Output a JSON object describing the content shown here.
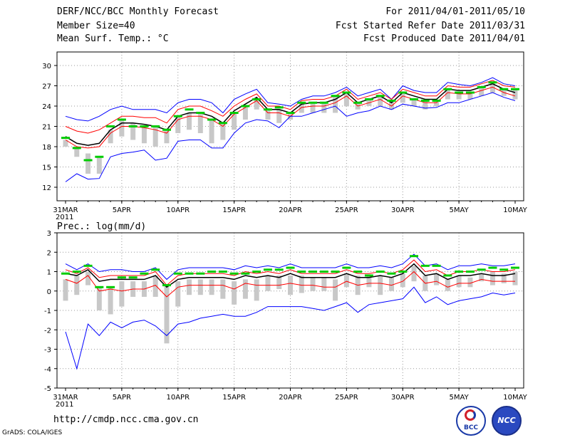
{
  "header": {
    "title": "DERF/NCC/BCC Monthly Forecast",
    "member_size": "Member Size=40",
    "variable": "Mean Surf. Temp.: °C",
    "period": "For 2011/04/01-2011/05/10",
    "start_date": "Fcst Started Refer Date 2011/03/31",
    "produced_date": "Fcst Produced Date 2011/04/01"
  },
  "footer": {
    "url": "http://cmdp.ncc.cma.gov.cn",
    "credit": "GrADS: COLA/IGES"
  },
  "logos": {
    "bcc": "BCC",
    "ncc": "NCC"
  },
  "colors": {
    "envelope": "#0000ff",
    "spread": "#ff0000",
    "mean": "#000000",
    "observed": "#00cc00",
    "bars": "#c8c8c8",
    "grid": "#999999"
  },
  "chart_data": [
    {
      "type": "line",
      "title": "Mean Surf. Temp.: °C",
      "ylim": [
        10,
        32
      ],
      "yticks": [
        12,
        15,
        18,
        21,
        24,
        27,
        30
      ],
      "xlim": [
        1,
        41
      ],
      "xtick_positions": [
        1,
        6,
        11,
        16,
        21,
        26,
        31,
        36,
        41
      ],
      "xtick_labels": [
        "31MAR",
        "5APR",
        "10APR",
        "15APR",
        "20APR",
        "25APR",
        "30APR",
        "5MAY",
        "10MAY"
      ],
      "xtick_year": "2011",
      "x": [
        1,
        2,
        3,
        4,
        5,
        6,
        7,
        8,
        9,
        10,
        11,
        12,
        13,
        14,
        15,
        16,
        17,
        18,
        19,
        20,
        21,
        22,
        23,
        24,
        25,
        26,
        27,
        28,
        29,
        30,
        31,
        32,
        33,
        34,
        35,
        36,
        37,
        38,
        39,
        40,
        41
      ],
      "series": [
        {
          "name": "max",
          "values": [
            22.5,
            22.0,
            21.8,
            22.5,
            23.5,
            24.0,
            23.5,
            23.5,
            23.5,
            23.0,
            24.5,
            25.0,
            25.0,
            24.5,
            23.0,
            25.0,
            25.8,
            26.5,
            24.5,
            24.3,
            24.0,
            25.0,
            25.5,
            25.5,
            26.0,
            26.8,
            25.5,
            26.0,
            26.5,
            25.0,
            27.0,
            26.3,
            26.0,
            26.0,
            27.5,
            27.2,
            27.0,
            27.5,
            28.2,
            27.3,
            27.0
          ]
        },
        {
          "name": "upper",
          "values": [
            21.0,
            20.3,
            20.0,
            20.5,
            21.5,
            22.5,
            22.5,
            22.3,
            22.3,
            21.5,
            23.5,
            24.0,
            24.0,
            23.3,
            22.5,
            24.0,
            25.0,
            25.8,
            24.0,
            24.0,
            23.5,
            24.8,
            25.0,
            25.0,
            25.5,
            26.5,
            25.0,
            25.5,
            26.0,
            25.0,
            26.5,
            26.0,
            25.5,
            25.5,
            27.0,
            26.8,
            26.8,
            27.3,
            27.8,
            27.0,
            26.8
          ]
        },
        {
          "name": "mean",
          "values": [
            19.5,
            18.5,
            18.2,
            18.5,
            20.5,
            21.5,
            21.5,
            21.3,
            21.0,
            20.5,
            22.5,
            23.0,
            23.0,
            22.5,
            21.5,
            23.3,
            24.3,
            25.3,
            23.5,
            23.5,
            23.0,
            24.3,
            24.5,
            24.5,
            25.0,
            26.0,
            24.5,
            25.0,
            25.5,
            24.5,
            26.0,
            25.5,
            25.0,
            25.0,
            26.5,
            26.3,
            26.3,
            26.8,
            27.3,
            26.5,
            26.0
          ]
        },
        {
          "name": "lower",
          "values": [
            19.0,
            18.0,
            17.8,
            18.0,
            20.0,
            21.0,
            21.0,
            20.8,
            20.5,
            20.0,
            22.0,
            22.5,
            22.5,
            22.0,
            21.0,
            22.8,
            23.8,
            24.8,
            23.0,
            23.0,
            22.5,
            23.8,
            24.0,
            24.0,
            24.5,
            25.5,
            24.0,
            24.5,
            25.0,
            24.0,
            25.5,
            25.0,
            24.5,
            24.5,
            26.0,
            25.8,
            25.8,
            26.3,
            26.8,
            26.0,
            25.5
          ]
        },
        {
          "name": "min",
          "values": [
            12.8,
            14.0,
            13.2,
            13.3,
            16.5,
            17.0,
            17.2,
            17.5,
            16.0,
            16.3,
            18.8,
            19.0,
            19.0,
            17.8,
            17.8,
            20.0,
            21.5,
            22.0,
            21.8,
            20.8,
            22.5,
            22.5,
            23.0,
            23.5,
            24.0,
            22.5,
            23.0,
            23.3,
            24.0,
            23.5,
            24.3,
            24.0,
            23.7,
            23.8,
            24.5,
            24.5,
            25.0,
            25.5,
            26.0,
            25.3,
            24.8
          ]
        },
        {
          "name": "observed",
          "values": [
            19.3,
            17.8,
            16.0,
            16.5,
            21.0,
            22.0,
            21.0,
            21.0,
            21.0,
            20.5,
            22.5,
            23.5,
            23.0,
            22.0,
            21.5,
            23.0,
            24.0,
            25.0,
            23.5,
            23.8,
            23.0,
            24.5,
            24.5,
            24.5,
            25.5,
            26.0,
            24.5,
            25.0,
            25.5,
            24.8,
            26.0,
            25.0,
            24.8,
            24.8,
            26.5,
            26.0,
            26.0,
            26.8,
            27.5,
            26.5,
            26.5
          ]
        }
      ],
      "bars": [
        [
          18.0,
          19.0
        ],
        [
          16.5,
          18.0
        ],
        [
          14.0,
          17.0
        ],
        [
          14.0,
          16.5
        ],
        [
          18.5,
          20.5
        ],
        [
          19.5,
          22.0
        ],
        [
          19.0,
          21.5
        ],
        [
          18.5,
          21.0
        ],
        [
          18.0,
          21.0
        ],
        [
          18.5,
          20.5
        ],
        [
          20.0,
          22.5
        ],
        [
          20.5,
          23.0
        ],
        [
          20.0,
          23.0
        ],
        [
          18.5,
          22.0
        ],
        [
          19.0,
          21.5
        ],
        [
          20.5,
          23.0
        ],
        [
          22.0,
          24.0
        ],
        [
          23.5,
          25.0
        ],
        [
          22.0,
          23.5
        ],
        [
          21.5,
          23.5
        ],
        [
          22.0,
          23.0
        ],
        [
          23.0,
          24.5
        ],
        [
          23.0,
          24.5
        ],
        [
          23.0,
          24.5
        ],
        [
          23.0,
          25.5
        ],
        [
          24.0,
          26.0
        ],
        [
          23.5,
          24.5
        ],
        [
          24.0,
          25.0
        ],
        [
          24.0,
          25.5
        ],
        [
          23.5,
          24.8
        ],
        [
          24.5,
          26.0
        ],
        [
          24.0,
          25.0
        ],
        [
          23.5,
          24.8
        ],
        [
          24.0,
          24.8
        ],
        [
          25.0,
          26.5
        ],
        [
          25.0,
          26.0
        ],
        [
          25.0,
          26.0
        ],
        [
          25.5,
          26.8
        ],
        [
          26.0,
          27.5
        ],
        [
          25.5,
          26.5
        ],
        [
          25.0,
          26.5
        ]
      ]
    },
    {
      "type": "line",
      "title": "Prec.: log(mm/d)",
      "ylim": [
        -5,
        3
      ],
      "yticks": [
        -5,
        -4,
        -3,
        -2,
        -1,
        0,
        1,
        2,
        3
      ],
      "xlim": [
        1,
        41
      ],
      "xtick_positions": [
        1,
        6,
        11,
        16,
        21,
        26,
        31,
        36,
        41
      ],
      "xtick_labels": [
        "31MAR",
        "5APR",
        "10APR",
        "15APR",
        "20APR",
        "25APR",
        "30APR",
        "5MAY",
        "10MAY"
      ],
      "xtick_year": "2011",
      "x": [
        1,
        2,
        3,
        4,
        5,
        6,
        7,
        8,
        9,
        10,
        11,
        12,
        13,
        14,
        15,
        16,
        17,
        18,
        19,
        20,
        21,
        22,
        23,
        24,
        25,
        26,
        27,
        28,
        29,
        30,
        31,
        32,
        33,
        34,
        35,
        36,
        37,
        38,
        39,
        40,
        41
      ],
      "series": [
        {
          "name": "max",
          "values": [
            1.4,
            1.1,
            1.4,
            1.0,
            1.1,
            1.1,
            1.0,
            1.0,
            1.2,
            0.6,
            1.1,
            1.2,
            1.2,
            1.2,
            1.2,
            1.1,
            1.3,
            1.2,
            1.3,
            1.2,
            1.4,
            1.2,
            1.2,
            1.2,
            1.2,
            1.4,
            1.2,
            1.2,
            1.3,
            1.2,
            1.4,
            1.9,
            1.3,
            1.4,
            1.1,
            1.3,
            1.3,
            1.4,
            1.3,
            1.3,
            1.4
          ]
        },
        {
          "name": "upper",
          "values": [
            1.1,
            0.9,
            1.2,
            0.7,
            0.8,
            0.8,
            0.8,
            0.8,
            1.0,
            0.3,
            0.8,
            0.9,
            0.9,
            0.9,
            0.9,
            0.8,
            1.0,
            0.9,
            1.0,
            0.9,
            1.1,
            0.9,
            0.9,
            0.9,
            0.9,
            1.1,
            0.9,
            0.9,
            1.0,
            0.9,
            1.1,
            1.6,
            1.0,
            1.1,
            0.8,
            1.0,
            1.0,
            1.1,
            1.0,
            1.0,
            1.1
          ]
        },
        {
          "name": "mean",
          "values": [
            0.9,
            0.8,
            1.1,
            0.5,
            0.6,
            0.6,
            0.6,
            0.6,
            0.8,
            0.2,
            0.6,
            0.7,
            0.7,
            0.7,
            0.7,
            0.6,
            0.8,
            0.7,
            0.8,
            0.7,
            0.9,
            0.7,
            0.7,
            0.7,
            0.7,
            0.9,
            0.7,
            0.7,
            0.8,
            0.7,
            0.9,
            1.4,
            0.8,
            0.9,
            0.6,
            0.8,
            0.8,
            0.9,
            0.8,
            0.8,
            0.9
          ]
        },
        {
          "name": "lower",
          "values": [
            0.6,
            0.4,
            0.8,
            0.0,
            0.1,
            0.0,
            0.1,
            0.1,
            0.3,
            -0.3,
            0.2,
            0.3,
            0.3,
            0.3,
            0.3,
            0.1,
            0.4,
            0.3,
            0.3,
            0.3,
            0.4,
            0.3,
            0.3,
            0.2,
            0.2,
            0.5,
            0.3,
            0.4,
            0.4,
            0.3,
            0.5,
            1.0,
            0.4,
            0.5,
            0.2,
            0.4,
            0.4,
            0.6,
            0.5,
            0.5,
            0.5
          ]
        },
        {
          "name": "min",
          "values": [
            -2.1,
            -4.0,
            -1.7,
            -2.3,
            -1.6,
            -1.9,
            -1.6,
            -1.5,
            -1.8,
            -2.3,
            -1.7,
            -1.6,
            -1.4,
            -1.3,
            -1.2,
            -1.3,
            -1.3,
            -1.1,
            -0.8,
            -0.8,
            -0.8,
            -0.8,
            -0.9,
            -1.0,
            -0.8,
            -0.6,
            -1.1,
            -0.7,
            -0.6,
            -0.5,
            -0.4,
            0.2,
            -0.6,
            -0.3,
            -0.7,
            -0.5,
            -0.4,
            -0.3,
            -0.1,
            -0.2,
            -0.1
          ]
        },
        {
          "name": "observed",
          "values": [
            0.9,
            1.0,
            1.3,
            0.2,
            0.2,
            0.7,
            0.7,
            0.9,
            1.1,
            0.3,
            0.9,
            0.9,
            0.9,
            1.0,
            1.0,
            0.9,
            0.9,
            1.0,
            1.1,
            1.1,
            1.2,
            1.0,
            1.0,
            1.0,
            1.0,
            1.2,
            1.0,
            0.8,
            1.0,
            0.9,
            1.0,
            1.8,
            1.3,
            1.3,
            0.8,
            1.0,
            1.0,
            1.1,
            1.2,
            1.1,
            1.2
          ]
        }
      ],
      "bars": [
        [
          -0.5,
          0.6
        ],
        [
          -0.2,
          0.8
        ],
        [
          0.3,
          1.0
        ],
        [
          -1.0,
          0.2
        ],
        [
          -1.2,
          0.2
        ],
        [
          -0.8,
          0.5
        ],
        [
          -0.3,
          0.5
        ],
        [
          -0.3,
          0.5
        ],
        [
          -0.3,
          0.8
        ],
        [
          -2.7,
          0.3
        ],
        [
          -0.8,
          0.5
        ],
        [
          -0.2,
          0.6
        ],
        [
          -0.2,
          0.6
        ],
        [
          -0.2,
          0.6
        ],
        [
          -0.4,
          0.6
        ],
        [
          -0.7,
          0.5
        ],
        [
          -0.4,
          0.6
        ],
        [
          -0.5,
          0.6
        ],
        [
          0.0,
          0.8
        ],
        [
          0.1,
          0.8
        ],
        [
          -0.2,
          0.8
        ],
        [
          -0.1,
          0.8
        ],
        [
          0.0,
          0.7
        ],
        [
          0.0,
          0.7
        ],
        [
          -0.5,
          0.6
        ],
        [
          0.2,
          0.9
        ],
        [
          -0.2,
          0.8
        ],
        [
          0.2,
          0.8
        ],
        [
          -0.2,
          0.8
        ],
        [
          0.0,
          0.7
        ],
        [
          0.2,
          0.9
        ],
        [
          0.5,
          1.3
        ],
        [
          0.0,
          0.8
        ],
        [
          0.3,
          0.9
        ],
        [
          0.0,
          0.6
        ],
        [
          0.2,
          0.8
        ],
        [
          0.2,
          0.7
        ],
        [
          0.5,
          0.9
        ],
        [
          0.3,
          1.0
        ],
        [
          0.4,
          0.9
        ],
        [
          0.3,
          1.0
        ]
      ]
    }
  ]
}
